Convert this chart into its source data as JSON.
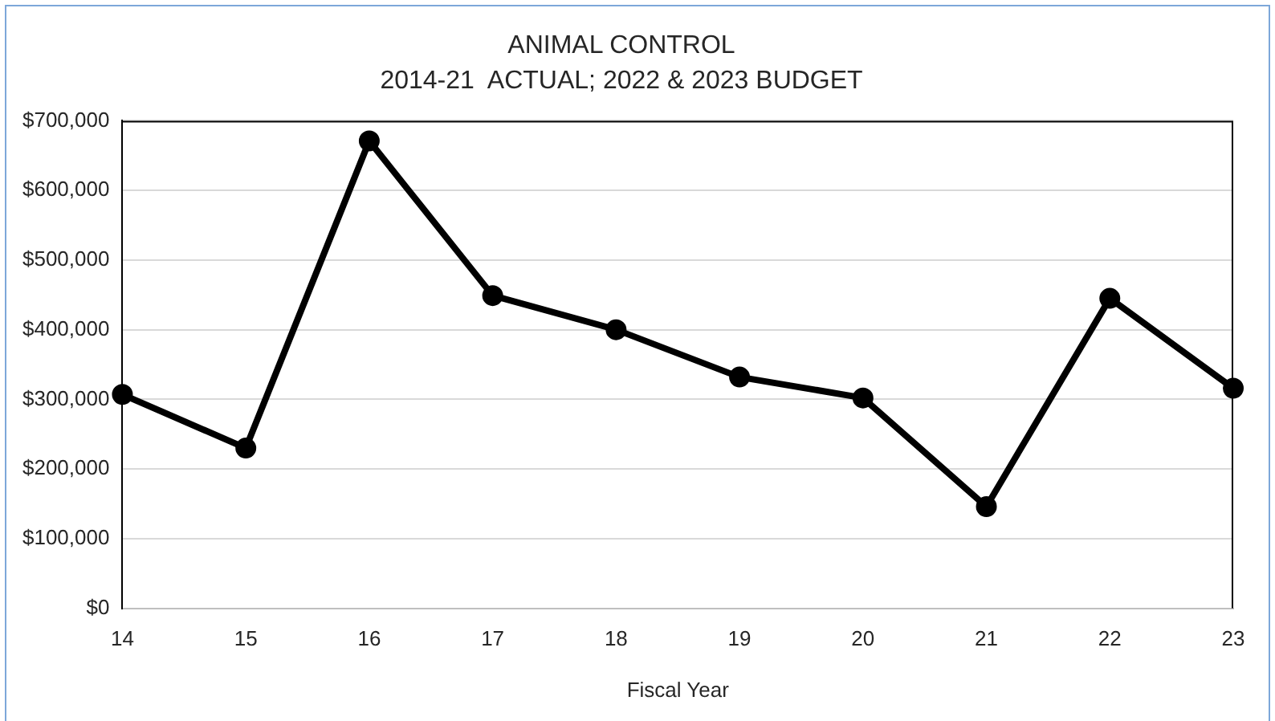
{
  "chart_data": {
    "type": "line",
    "title": "ANIMAL CONTROL",
    "subtitle": "2014-21  ACTUAL; 2022 & 2023 BUDGET",
    "xlabel": "Fiscal Year",
    "categories": [
      "14",
      "15",
      "16",
      "17",
      "18",
      "19",
      "20",
      "21",
      "22",
      "23"
    ],
    "series": [
      {
        "color": "#000000",
        "values": [
          307000,
          230000,
          671000,
          449000,
          400000,
          332000,
          302000,
          146000,
          445000,
          316000
        ]
      }
    ],
    "ylim": [
      0,
      700000
    ],
    "yticks": [
      {
        "value": 0,
        "label": "$0"
      },
      {
        "value": 100000,
        "label": "$100,000"
      },
      {
        "value": 200000,
        "label": "$200,000"
      },
      {
        "value": 300000,
        "label": "$300,000"
      },
      {
        "value": 400000,
        "label": "$400,000"
      },
      {
        "value": 500000,
        "label": "$500,000"
      },
      {
        "value": 600000,
        "label": "$600,000"
      },
      {
        "value": 700000,
        "label": "$700,000"
      }
    ],
    "grid": "y",
    "marker": "circle",
    "line_style": "solid"
  }
}
